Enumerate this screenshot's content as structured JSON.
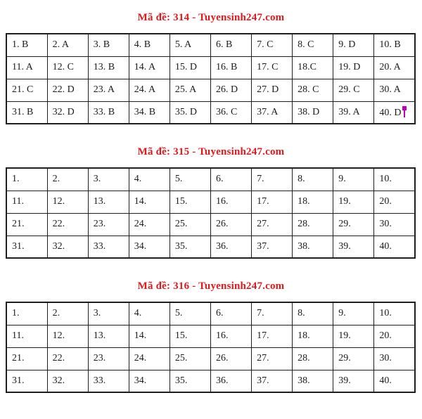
{
  "colors": {
    "title_red": "#e4181c",
    "cursor_magenta": "#bb00bb",
    "border_black": "#1f1f1f",
    "text_black": "#1c1c1c"
  },
  "sections": [
    {
      "code": "314",
      "title": "Mã đề: 314 - Tuyensinh247.com",
      "rows": [
        [
          "1. B",
          "2. A",
          "3. B",
          "4. B",
          "5. A",
          "6. B",
          "7. C",
          "8. C",
          "9. D",
          "10. B"
        ],
        [
          "11. A",
          "12. C",
          "13. B",
          "14. A",
          "15. D",
          "16. B",
          "17. C",
          "18.C",
          "19. D",
          "20. A"
        ],
        [
          "21. C",
          "22. D",
          "23. A",
          "24. A",
          "25. A",
          "26. D",
          "27. D",
          "28. C",
          "29. C",
          "30. A"
        ],
        [
          "31. B",
          "32. D",
          "33. B",
          "34. B",
          "35. D",
          "36. C",
          "37. A",
          "38. D",
          "39. A",
          "40. D"
        ]
      ]
    },
    {
      "code": "315",
      "title": "Mã đề: 315 - Tuyensinh247.com",
      "rows": [
        [
          "1.",
          "2.",
          "3.",
          "4.",
          "5.",
          "6.",
          "7.",
          "8.",
          "9.",
          "10."
        ],
        [
          "11.",
          "12.",
          "13.",
          "14.",
          "15.",
          "16.",
          "17.",
          "18.",
          "19.",
          "20."
        ],
        [
          "21.",
          "22.",
          "23.",
          "24.",
          "25.",
          "26.",
          "27.",
          "28.",
          "29.",
          "30."
        ],
        [
          "31.",
          "32.",
          "33.",
          "34.",
          "35.",
          "36.",
          "37.",
          "38.",
          "39.",
          "40."
        ]
      ]
    },
    {
      "code": "316",
      "title": "Mã đề: 316 - Tuyensinh247.com",
      "rows": [
        [
          "1.",
          "2.",
          "3.",
          "4.",
          "5.",
          "6.",
          "7.",
          "8.",
          "9.",
          "10."
        ],
        [
          "11.",
          "12.",
          "13.",
          "14.",
          "15.",
          "16.",
          "17.",
          "18.",
          "19.",
          "20."
        ],
        [
          "21.",
          "22.",
          "23.",
          "24.",
          "25.",
          "26.",
          "27.",
          "28.",
          "29.",
          "30."
        ],
        [
          "31.",
          "32.",
          "33.",
          "34.",
          "35.",
          "36.",
          "37.",
          "38.",
          "39.",
          "40."
        ]
      ]
    }
  ],
  "text_cursor": {
    "section": 0,
    "row": 3,
    "col": 9
  }
}
